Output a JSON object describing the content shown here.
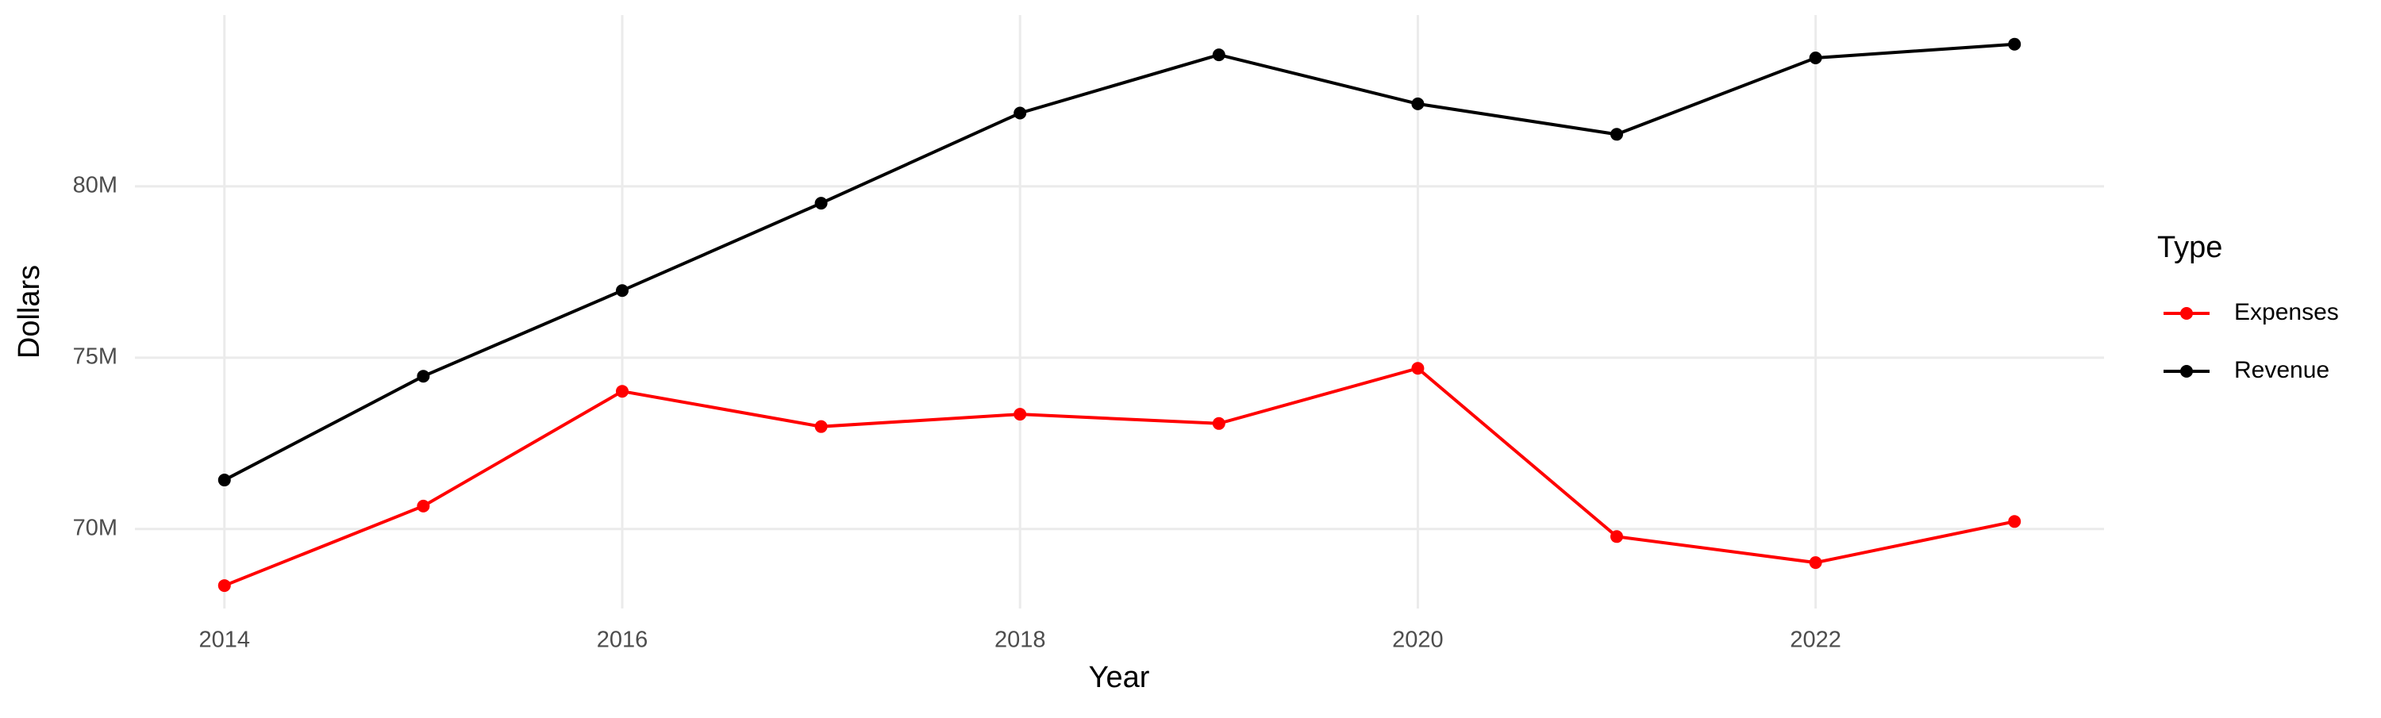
{
  "chart_data": {
    "type": "line",
    "x_label": "Year",
    "y_label": "Dollars",
    "legend_title": "Type",
    "legend_position": "right",
    "grid": true,
    "x": [
      2014,
      2015,
      2016,
      2017,
      2018,
      2019,
      2020,
      2021,
      2022,
      2023
    ],
    "series": [
      {
        "name": "Expenses",
        "color": "#ff0000",
        "values": [
          68350000,
          70670000,
          74020000,
          72990000,
          73350000,
          73080000,
          74690000,
          69780000,
          69020000,
          70220000
        ]
      },
      {
        "name": "Revenue",
        "color": "#000000",
        "values": [
          71430000,
          74460000,
          76960000,
          79510000,
          82140000,
          83840000,
          82410000,
          81520000,
          83750000,
          84150000
        ]
      }
    ],
    "xlim": [
      2013.55,
      2023.45
    ],
    "xticks": [
      2014,
      2016,
      2018,
      2020,
      2022
    ],
    "ylim": [
      67680000,
      85000000
    ],
    "yticks": [
      {
        "value": 70000000,
        "label": "70M"
      },
      {
        "value": 75000000,
        "label": "75M"
      },
      {
        "value": 80000000,
        "label": "80M"
      }
    ]
  }
}
